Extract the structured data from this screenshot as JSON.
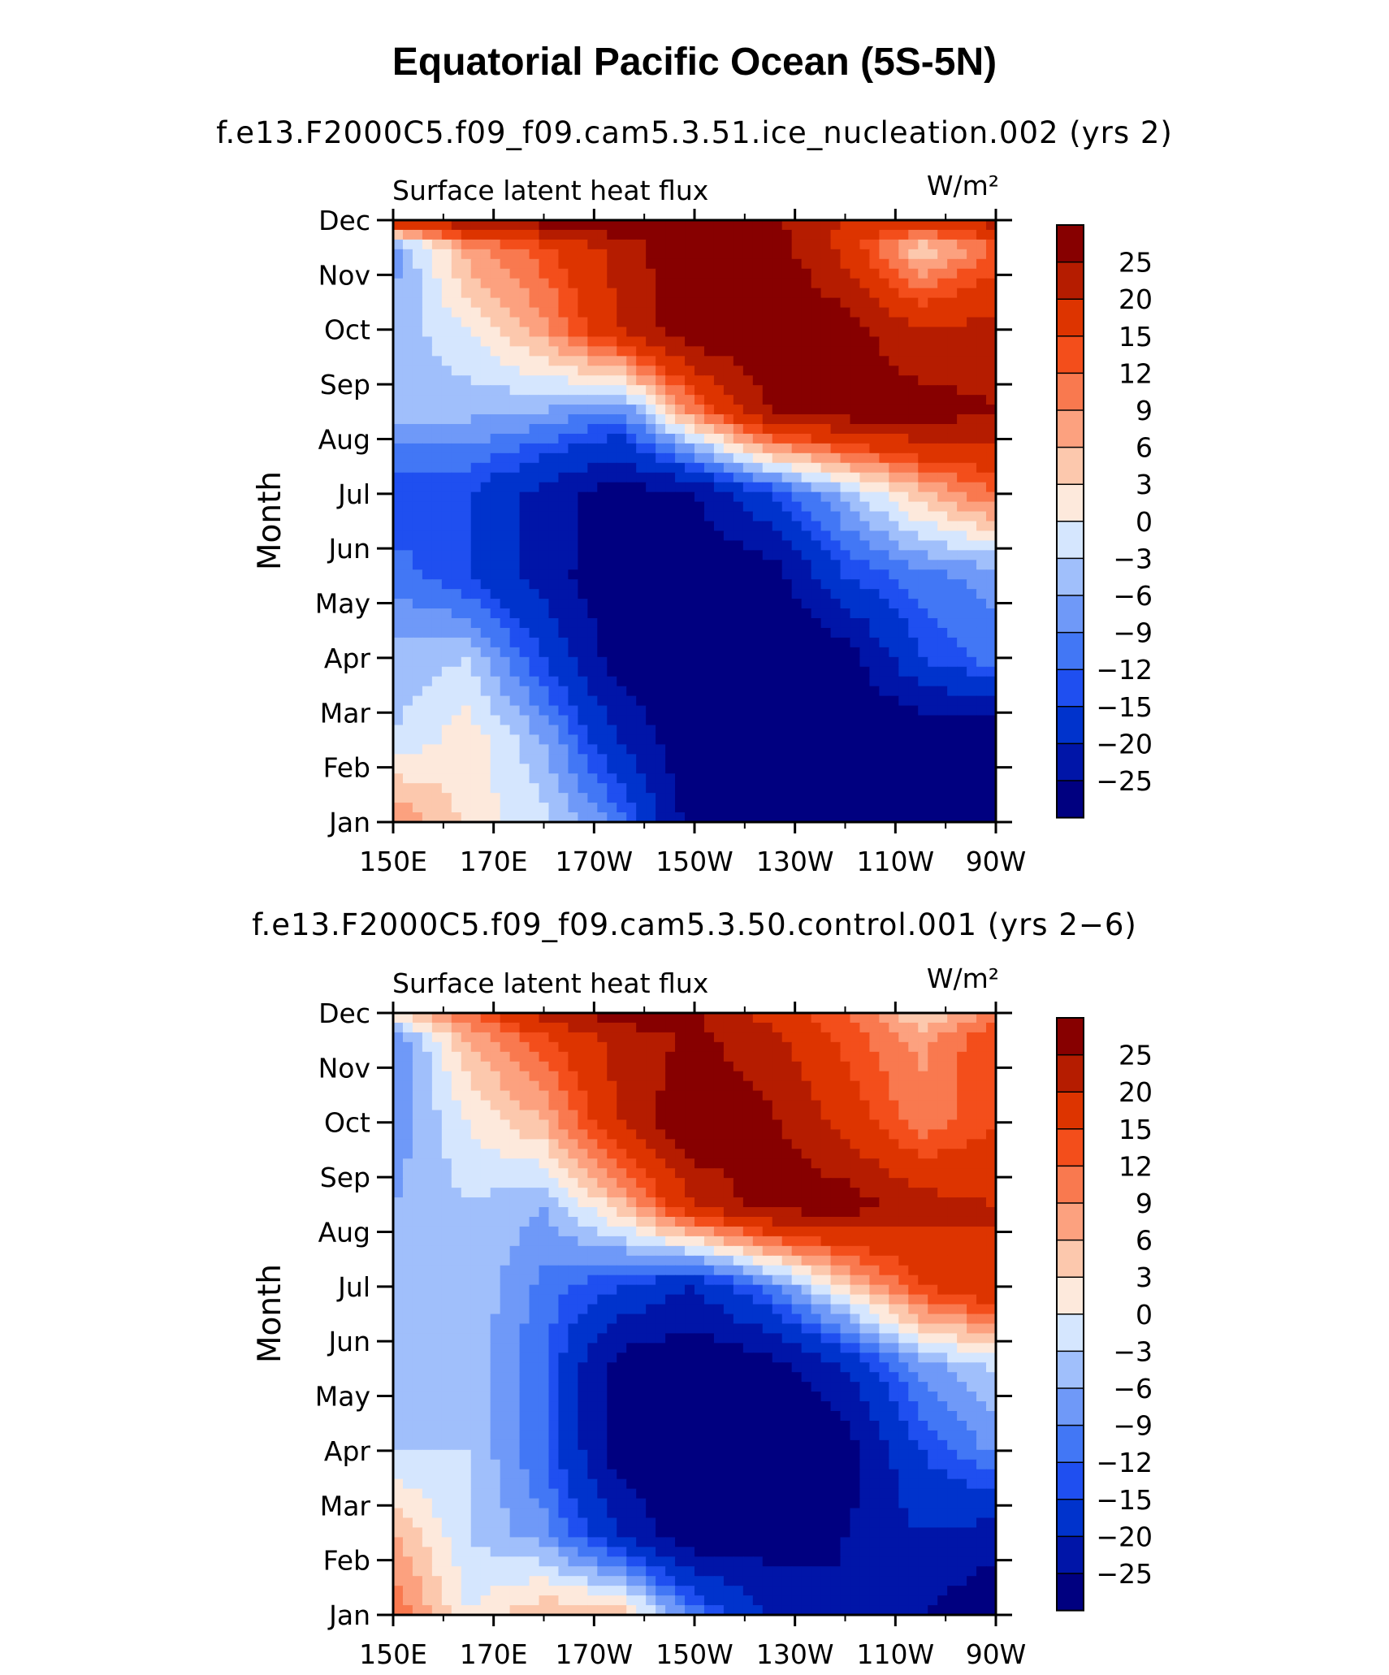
{
  "title": "Equatorial Pacific Ocean (5S-5N)",
  "chart_data": [
    {
      "type": "heatmap",
      "subtitle": "f.e13.F2000C5.f09_f09.cam5.3.51.ice_nucleation.002 (yrs 2)",
      "variable": "Surface latent heat flux",
      "units": "W/m²",
      "ylabel": "Month",
      "x_ticks": [
        "150E",
        "170E",
        "170W",
        "150W",
        "130W",
        "110W",
        "90W"
      ],
      "y_ticks": [
        "Jan",
        "Feb",
        "Mar",
        "Apr",
        "May",
        "Jun",
        "Jul",
        "Aug",
        "Sep",
        "Oct",
        "Nov",
        "Dec"
      ],
      "x_range_deg_east": [
        150,
        270
      ],
      "levels": [
        -25,
        -20,
        -15,
        -12,
        -9,
        -6,
        -3,
        0,
        3,
        6,
        9,
        12,
        15,
        20,
        25
      ],
      "level_labels": [
        "25",
        "20",
        "15",
        "12",
        "9",
        "6",
        "3",
        "0",
        "−3",
        "−6",
        "−9",
        "−12",
        "−15",
        "−20",
        "−25"
      ],
      "colors": [
        "#000080",
        "#0015a8",
        "#0033cc",
        "#1f4ff0",
        "#4277f5",
        "#6f99f8",
        "#a0bffb",
        "#d5e6fe",
        "#fde9dc",
        "#fcc8ad",
        "#fca17f",
        "#f9794f",
        "#f34e1b",
        "#dd3400",
        "#b51c00",
        "#870000"
      ],
      "grid_x_deg_east": [
        150,
        165,
        180,
        195,
        210,
        225,
        240,
        255,
        270
      ],
      "grid_y_month": [
        1,
        2.5,
        4,
        5.5,
        7,
        8.5,
        10,
        11.5,
        12
      ],
      "values": [
        [
          10,
          2,
          -2,
          -10,
          -28,
          -30,
          -30,
          -30,
          -30
        ],
        [
          -3,
          2,
          -6,
          -20,
          -30,
          -30,
          -30,
          -30,
          -30
        ],
        [
          -5,
          -3,
          -15,
          -28,
          -30,
          -30,
          -28,
          -15,
          -10
        ],
        [
          -10,
          -15,
          -22,
          -30,
          -30,
          -28,
          -15,
          -10,
          -8
        ],
        [
          -15,
          -15,
          -22,
          -28,
          -25,
          -15,
          -5,
          5,
          12
        ],
        [
          -5,
          -5,
          -6,
          -10,
          10,
          25,
          28,
          28,
          25
        ],
        [
          -5,
          0,
          8,
          20,
          30,
          30,
          28,
          20,
          22
        ],
        [
          -8,
          8,
          14,
          22,
          30,
          28,
          18,
          3,
          12
        ],
        [
          20,
          24,
          28,
          30,
          30,
          26,
          20,
          20,
          22
        ]
      ]
    },
    {
      "type": "heatmap",
      "subtitle": "f.e13.F2000C5.f09_f09.cam5.3.50.control.001 (yrs 2−6)",
      "variable": "Surface latent heat flux",
      "units": "W/m²",
      "ylabel": "Month",
      "x_ticks": [
        "150E",
        "170E",
        "170W",
        "150W",
        "130W",
        "110W",
        "90W"
      ],
      "y_ticks": [
        "Jan",
        "Feb",
        "Mar",
        "Apr",
        "May",
        "Jun",
        "Jul",
        "Aug",
        "Sep",
        "Oct",
        "Nov",
        "Dec"
      ],
      "x_range_deg_east": [
        150,
        270
      ],
      "levels": [
        -25,
        -20,
        -15,
        -12,
        -9,
        -6,
        -3,
        0,
        3,
        6,
        9,
        12,
        15,
        20,
        25
      ],
      "level_labels": [
        "25",
        "20",
        "15",
        "12",
        "9",
        "6",
        "3",
        "0",
        "−3",
        "−6",
        "−9",
        "−12",
        "−15",
        "−20",
        "−25"
      ],
      "colors": [
        "#000080",
        "#0015a8",
        "#0033cc",
        "#1f4ff0",
        "#4277f5",
        "#6f99f8",
        "#a0bffb",
        "#d5e6fe",
        "#fde9dc",
        "#fcc8ad",
        "#fca17f",
        "#f9794f",
        "#f34e1b",
        "#dd3400",
        "#b51c00",
        "#870000"
      ],
      "grid_x_deg_east": [
        150,
        165,
        180,
        195,
        210,
        225,
        240,
        255,
        270
      ],
      "grid_y_month": [
        1,
        2.5,
        4,
        5.5,
        7,
        8.5,
        10,
        11.5,
        12
      ],
      "values": [
        [
          12,
          0,
          6,
          6,
          -10,
          -20,
          -25,
          -25,
          -30
        ],
        [
          6,
          -3,
          -8,
          -20,
          -30,
          -28,
          -25,
          -20,
          -22
        ],
        [
          -3,
          -3,
          -12,
          -28,
          -30,
          -30,
          -28,
          -15,
          -8
        ],
        [
          -6,
          -4,
          -12,
          -28,
          -30,
          -28,
          -20,
          -8,
          -3
        ],
        [
          -4,
          -3,
          -10,
          -15,
          -20,
          -10,
          3,
          15,
          20
        ],
        [
          -6,
          -3,
          -6,
          5,
          20,
          28,
          28,
          22,
          20
        ],
        [
          -8,
          0,
          6,
          20,
          30,
          26,
          18,
          10,
          15
        ],
        [
          -10,
          6,
          14,
          22,
          26,
          22,
          14,
          8,
          15
        ],
        [
          3,
          12,
          22,
          28,
          26,
          18,
          12,
          3,
          10
        ]
      ]
    }
  ]
}
